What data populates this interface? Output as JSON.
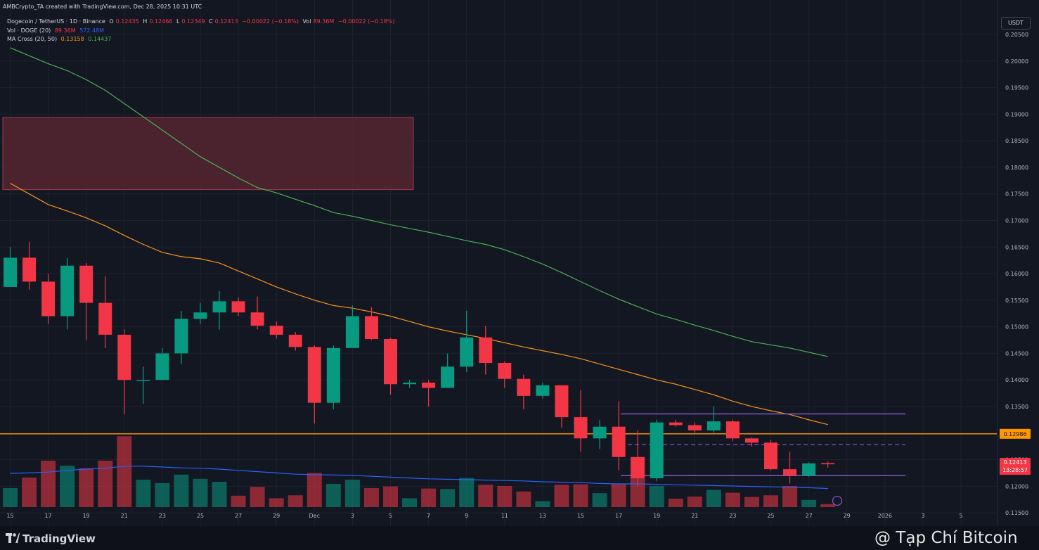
{
  "header": {
    "attribution": "AMBCrypto_TA created with TradingView.com, Dec 28, 2025 10:31 UTC",
    "symbol": "Dogecoin / TetherUS · 1D · Binance",
    "ohlc": {
      "o_label": "O",
      "o": "0.12435",
      "h_label": "H",
      "h": "0.12466",
      "l_label": "L",
      "l": "0.12349",
      "c_label": "C",
      "c": "0.12413",
      "change": "−0.00022 (−0.18%)",
      "vol_label": "Vol",
      "vol": "89.36M",
      "vol_change": "−0.00022 (−0.18%)"
    },
    "volume_legend": {
      "label": "Vol · DOGE (20)",
      "v1": "89.36M",
      "v2": "572.48M"
    },
    "ma_legend": {
      "label": "MA Cross (20, 50)",
      "v1": "0.13158",
      "v2": "0.14437"
    }
  },
  "currency_button": "USDT",
  "footer": {
    "brand": "TradingView",
    "watermark": "@ Tạp Chí Bitcoin"
  },
  "colors": {
    "background": "#131722",
    "up": "#089981",
    "down": "#f23645",
    "ma_fast": "#f7931a",
    "ma_slow": "#4caf50",
    "vol_ma": "#2962ff",
    "range": "#7e57c2",
    "hline": "#ff9800",
    "zone": "#5b2733"
  },
  "chart_data": {
    "type": "candlestick",
    "title": "Dogecoin / TetherUS · 1D · Binance",
    "ylim": [
      0.1125,
      0.2095
    ],
    "y_ticks": [
      "0.20500",
      "0.20000",
      "0.19500",
      "0.19000",
      "0.18500",
      "0.18000",
      "0.17500",
      "0.17000",
      "0.16500",
      "0.16000",
      "0.15500",
      "0.15000",
      "0.14500",
      "0.14000",
      "0.13500",
      "0.13000",
      "0.12500",
      "0.12000",
      "0.11500"
    ],
    "x_ticks": [
      "15",
      "17",
      "19",
      "21",
      "23",
      "25",
      "27",
      "29",
      "Dec",
      "3",
      "5",
      "7",
      "9",
      "11",
      "13",
      "15",
      "17",
      "19",
      "21",
      "23",
      "25",
      "27",
      "29",
      "2026",
      "3",
      "5"
    ],
    "candles": [
      {
        "date": "Nov 15",
        "o": 0.1575,
        "h": 0.165,
        "l": 0.1575,
        "c": 0.163
      },
      {
        "date": "Nov 16",
        "o": 0.163,
        "h": 0.166,
        "l": 0.157,
        "c": 0.1585
      },
      {
        "date": "Nov 17",
        "o": 0.1585,
        "h": 0.16,
        "l": 0.1505,
        "c": 0.152
      },
      {
        "date": "Nov 18",
        "o": 0.152,
        "h": 0.163,
        "l": 0.1495,
        "c": 0.1615
      },
      {
        "date": "Nov 19",
        "o": 0.1615,
        "h": 0.162,
        "l": 0.1475,
        "c": 0.1545
      },
      {
        "date": "Nov 20",
        "o": 0.1545,
        "h": 0.1595,
        "l": 0.146,
        "c": 0.1485
      },
      {
        "date": "Nov 21",
        "o": 0.1485,
        "h": 0.1495,
        "l": 0.1335,
        "c": 0.14
      },
      {
        "date": "Nov 22",
        "o": 0.14,
        "h": 0.1425,
        "l": 0.1355,
        "c": 0.14
      },
      {
        "date": "Nov 23",
        "o": 0.14,
        "h": 0.146,
        "l": 0.14,
        "c": 0.145
      },
      {
        "date": "Nov 24",
        "o": 0.145,
        "h": 0.153,
        "l": 0.143,
        "c": 0.1515
      },
      {
        "date": "Nov 25",
        "o": 0.1515,
        "h": 0.1545,
        "l": 0.1505,
        "c": 0.1527
      },
      {
        "date": "Nov 26",
        "o": 0.1527,
        "h": 0.1567,
        "l": 0.1495,
        "c": 0.1548
      },
      {
        "date": "Nov 27",
        "o": 0.1548,
        "h": 0.1555,
        "l": 0.152,
        "c": 0.1527
      },
      {
        "date": "Nov 28",
        "o": 0.1527,
        "h": 0.1557,
        "l": 0.1495,
        "c": 0.1502
      },
      {
        "date": "Nov 29",
        "o": 0.1502,
        "h": 0.151,
        "l": 0.1478,
        "c": 0.1485
      },
      {
        "date": "Nov 30",
        "o": 0.1485,
        "h": 0.149,
        "l": 0.1455,
        "c": 0.1462
      },
      {
        "date": "Dec 1",
        "o": 0.1462,
        "h": 0.1465,
        "l": 0.1318,
        "c": 0.1357
      },
      {
        "date": "Dec 2",
        "o": 0.1357,
        "h": 0.1465,
        "l": 0.1345,
        "c": 0.146
      },
      {
        "date": "Dec 3",
        "o": 0.146,
        "h": 0.154,
        "l": 0.146,
        "c": 0.152
      },
      {
        "date": "Dec 4",
        "o": 0.152,
        "h": 0.1537,
        "l": 0.1475,
        "c": 0.1477
      },
      {
        "date": "Dec 5",
        "o": 0.1477,
        "h": 0.1479,
        "l": 0.1372,
        "c": 0.1392
      },
      {
        "date": "Dec 6",
        "o": 0.1392,
        "h": 0.14,
        "l": 0.1385,
        "c": 0.1395
      },
      {
        "date": "Dec 7",
        "o": 0.1395,
        "h": 0.14,
        "l": 0.135,
        "c": 0.1385
      },
      {
        "date": "Dec 8",
        "o": 0.1385,
        "h": 0.145,
        "l": 0.1385,
        "c": 0.1425
      },
      {
        "date": "Dec 9",
        "o": 0.1425,
        "h": 0.153,
        "l": 0.1415,
        "c": 0.148
      },
      {
        "date": "Dec 10",
        "o": 0.148,
        "h": 0.1502,
        "l": 0.141,
        "c": 0.1432
      },
      {
        "date": "Dec 11",
        "o": 0.1432,
        "h": 0.1435,
        "l": 0.1385,
        "c": 0.1402
      },
      {
        "date": "Dec 12",
        "o": 0.1402,
        "h": 0.141,
        "l": 0.1345,
        "c": 0.137
      },
      {
        "date": "Dec 13",
        "o": 0.137,
        "h": 0.1395,
        "l": 0.1365,
        "c": 0.139
      },
      {
        "date": "Dec 14",
        "o": 0.139,
        "h": 0.139,
        "l": 0.131,
        "c": 0.133
      },
      {
        "date": "Dec 15",
        "o": 0.133,
        "h": 0.138,
        "l": 0.1265,
        "c": 0.129
      },
      {
        "date": "Dec 16",
        "o": 0.129,
        "h": 0.1325,
        "l": 0.127,
        "c": 0.1312
      },
      {
        "date": "Dec 17",
        "o": 0.1312,
        "h": 0.136,
        "l": 0.123,
        "c": 0.1255
      },
      {
        "date": "Dec 18",
        "o": 0.1255,
        "h": 0.1305,
        "l": 0.12,
        "c": 0.1215
      },
      {
        "date": "Dec 19",
        "o": 0.1215,
        "h": 0.1325,
        "l": 0.121,
        "c": 0.132
      },
      {
        "date": "Dec 20",
        "o": 0.132,
        "h": 0.1325,
        "l": 0.1312,
        "c": 0.1315
      },
      {
        "date": "Dec 21",
        "o": 0.1315,
        "h": 0.132,
        "l": 0.13,
        "c": 0.1305
      },
      {
        "date": "Dec 22",
        "o": 0.1305,
        "h": 0.135,
        "l": 0.13,
        "c": 0.1322
      },
      {
        "date": "Dec 23",
        "o": 0.1322,
        "h": 0.1325,
        "l": 0.1285,
        "c": 0.129
      },
      {
        "date": "Dec 24",
        "o": 0.129,
        "h": 0.1292,
        "l": 0.1275,
        "c": 0.1282
      },
      {
        "date": "Dec 25",
        "o": 0.1282,
        "h": 0.1287,
        "l": 0.123,
        "c": 0.1232
      },
      {
        "date": "Dec 26",
        "o": 0.1232,
        "h": 0.1265,
        "l": 0.1205,
        "c": 0.122
      },
      {
        "date": "Dec 27",
        "o": 0.122,
        "h": 0.1245,
        "l": 0.1218,
        "c": 0.1243
      },
      {
        "date": "Dec 28",
        "o": 0.12435,
        "h": 0.12466,
        "l": 0.12349,
        "c": 0.12413
      }
    ],
    "volume_series": {
      "name": "Vol · DOGE",
      "relative_values": [
        0.45,
        0.7,
        1.1,
        0.98,
        0.92,
        1.1,
        1.68,
        0.65,
        0.57,
        0.77,
        0.67,
        0.6,
        0.27,
        0.48,
        0.21,
        0.28,
        0.81,
        0.55,
        0.65,
        0.45,
        0.49,
        0.21,
        0.44,
        0.43,
        0.69,
        0.53,
        0.5,
        0.37,
        0.14,
        0.53,
        0.54,
        0.33,
        0.56,
        1.18,
        0.5,
        0.2,
        0.25,
        0.41,
        0.34,
        0.24,
        0.28,
        0.5,
        0.17,
        0.07
      ]
    },
    "series": [
      {
        "name": "MA 20",
        "values": [
          0.177,
          0.175,
          0.173,
          0.1718,
          0.1705,
          0.169,
          0.1672,
          0.1655,
          0.164,
          0.1632,
          0.1628,
          0.162,
          0.1605,
          0.159,
          0.1575,
          0.1562,
          0.155,
          0.154,
          0.1535,
          0.1528,
          0.152,
          0.151,
          0.15,
          0.1492,
          0.1485,
          0.1478,
          0.147,
          0.1462,
          0.1455,
          0.1448,
          0.144,
          0.143,
          0.142,
          0.141,
          0.14,
          0.1392,
          0.1382,
          0.1372,
          0.136,
          0.135,
          0.1342,
          0.1335,
          0.1325,
          0.1316
        ]
      },
      {
        "name": "MA 50",
        "values": [
          0.2025,
          0.201,
          0.1995,
          0.1982,
          0.1965,
          0.1945,
          0.192,
          0.1895,
          0.187,
          0.1845,
          0.182,
          0.18,
          0.178,
          0.1762,
          0.1752,
          0.174,
          0.1728,
          0.1715,
          0.1708,
          0.17,
          0.1692,
          0.1685,
          0.1678,
          0.167,
          0.1662,
          0.1655,
          0.1645,
          0.1632,
          0.1618,
          0.1602,
          0.1585,
          0.1568,
          0.1552,
          0.1538,
          0.1524,
          0.1514,
          0.1503,
          0.1493,
          0.1482,
          0.1472,
          0.1466,
          0.146,
          0.1452,
          0.1444
        ]
      },
      {
        "name": "Volume MA",
        "relative_values": [
          0.8,
          0.81,
          0.83,
          0.87,
          0.9,
          0.92,
          0.97,
          0.97,
          0.95,
          0.93,
          0.92,
          0.9,
          0.87,
          0.84,
          0.81,
          0.78,
          0.77,
          0.76,
          0.75,
          0.73,
          0.71,
          0.69,
          0.67,
          0.66,
          0.65,
          0.64,
          0.63,
          0.62,
          0.6,
          0.59,
          0.58,
          0.56,
          0.55,
          0.55,
          0.54,
          0.53,
          0.52,
          0.51,
          0.5,
          0.49,
          0.48,
          0.47,
          0.46,
          0.44
        ]
      }
    ],
    "annotations": {
      "zone": {
        "from_date": "Nov 15",
        "to_date": "Dec 6",
        "y_low": 0.1758,
        "y_high": 0.1894
      },
      "horizontal_line": {
        "y": 0.12986,
        "label": "0.12986"
      },
      "range_box": {
        "from_date": "Dec 17",
        "to_date": "Jan 1",
        "y_high": 0.1336,
        "y_mid": 0.1278,
        "y_low": 0.122
      },
      "last_price": {
        "label": "0.12413",
        "countdown": "13:28:57"
      }
    }
  }
}
